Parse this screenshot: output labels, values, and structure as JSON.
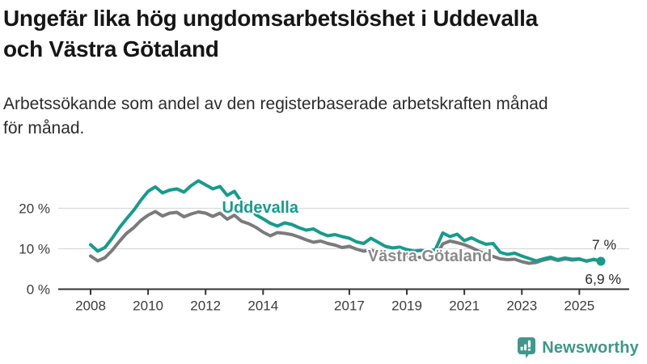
{
  "header": {
    "title_lines": [
      "Ungefär lika hög ungdomsarbetslöshet i Uddevalla",
      "och Västra Götaland"
    ],
    "subtitle_lines": [
      "Arbetssökande som andel av den registerbaserade arbetskraften månad",
      "för månad."
    ]
  },
  "footer": {
    "brand": "Newsworthy",
    "brand_color": "#40968a",
    "logo_icon": "speech-bubble-bar-chart-exclamation-icon"
  },
  "chart_data": {
    "type": "line",
    "title": "Ungefär lika hög ungdomsarbetslöshet i Uddevalla och Västra Götaland",
    "subtitle": "Arbetssökande som andel av den registerbaserade arbetskraften månad för månad.",
    "unit": "%",
    "grid": "horizontal",
    "legend": "inline-labels",
    "xlim": [
      2006.9,
      2026.8
    ],
    "ylim": [
      0,
      29
    ],
    "xticks": [
      "2008",
      "2010",
      "2012",
      "2014",
      "2017",
      "2019",
      "2021",
      "2023",
      "2025"
    ],
    "xtick_years": [
      2008,
      2010,
      2012,
      2014,
      2017,
      2019,
      2021,
      2023,
      2025
    ],
    "yticks": [
      {
        "value": 0,
        "label": "0 %"
      },
      {
        "value": 10,
        "label": "10 %"
      },
      {
        "value": 20,
        "label": "20 %"
      }
    ],
    "x": [
      2008.0,
      2008.25,
      2008.5,
      2008.75,
      2009.0,
      2009.25,
      2009.5,
      2009.75,
      2010.0,
      2010.25,
      2010.5,
      2010.75,
      2011.0,
      2011.25,
      2011.5,
      2011.75,
      2012.0,
      2012.25,
      2012.5,
      2012.75,
      2013.0,
      2013.25,
      2013.5,
      2013.75,
      2014.0,
      2014.25,
      2014.5,
      2014.75,
      2015.0,
      2015.25,
      2015.5,
      2015.75,
      2016.0,
      2016.25,
      2016.5,
      2016.75,
      2017.0,
      2017.25,
      2017.5,
      2017.75,
      2018.0,
      2018.25,
      2018.5,
      2018.75,
      2019.0,
      2019.25,
      2019.5,
      2019.75,
      2020.0,
      2020.25,
      2020.5,
      2020.75,
      2021.0,
      2021.25,
      2021.5,
      2021.75,
      2022.0,
      2022.25,
      2022.5,
      2022.75,
      2023.0,
      2023.25,
      2023.5,
      2023.75,
      2024.0,
      2024.25,
      2024.5,
      2024.75,
      2025.0,
      2025.25,
      2025.5,
      2025.75
    ],
    "series": [
      {
        "id": "uddevalla",
        "name": "Uddevalla",
        "color": "#1a9a8c",
        "values": [
          11.0,
          9.4,
          10.3,
          12.6,
          15.2,
          17.4,
          19.5,
          22.0,
          24.2,
          25.3,
          23.8,
          24.5,
          24.8,
          24.0,
          25.6,
          26.8,
          25.8,
          24.8,
          25.4,
          23.2,
          24.2,
          21.6,
          20.2,
          18.4,
          17.4,
          16.3,
          15.6,
          16.4,
          16.0,
          15.2,
          14.6,
          14.9,
          13.9,
          13.2,
          13.5,
          13.0,
          12.6,
          11.7,
          11.3,
          12.6,
          11.6,
          10.6,
          10.2,
          10.4,
          9.8,
          9.4,
          9.6,
          9.2,
          9.9,
          13.9,
          13.0,
          13.6,
          12.0,
          12.7,
          11.8,
          11.1,
          11.3,
          9.1,
          8.6,
          8.9,
          8.2,
          7.6,
          7.0,
          7.5,
          7.9,
          7.3,
          7.7,
          7.4,
          7.5,
          6.9,
          7.4,
          6.9
        ]
      },
      {
        "id": "vastra-gotaland",
        "name": "Västra Götaland",
        "color": "#7b7b7b",
        "values": [
          8.2,
          7.0,
          7.8,
          9.6,
          11.8,
          13.8,
          15.2,
          17.0,
          18.3,
          19.2,
          18.1,
          18.8,
          19.0,
          17.9,
          18.6,
          19.1,
          18.8,
          18.0,
          18.8,
          17.3,
          18.3,
          16.8,
          16.2,
          15.3,
          14.1,
          13.2,
          14.0,
          13.8,
          13.5,
          12.9,
          12.2,
          11.6,
          11.9,
          11.3,
          10.9,
          10.3,
          10.6,
          9.9,
          9.4,
          9.7,
          8.9,
          8.5,
          8.2,
          8.4,
          7.9,
          7.7,
          7.9,
          7.6,
          8.1,
          11.2,
          11.9,
          11.5,
          11.0,
          10.3,
          9.4,
          8.6,
          8.1,
          7.5,
          7.3,
          7.4,
          6.8,
          6.4,
          6.6,
          7.2,
          7.6,
          7.1,
          7.5,
          7.2,
          7.4,
          7.0,
          7.3,
          7.0
        ]
      }
    ],
    "inline_labels": [
      {
        "text": "Uddevalla",
        "x": 2013.9,
        "y": 20.3,
        "color": "#1a9a8c"
      },
      {
        "text": "Västra Götaland",
        "x": 2019.8,
        "y": 8.3,
        "color": "#8a8a8a"
      }
    ],
    "end_labels": [
      {
        "series": "Västra Götaland",
        "text": "7 %",
        "value": 7.0,
        "position": "above"
      },
      {
        "series": "Uddevalla",
        "text": "6,9 %",
        "value": 6.9,
        "position": "below"
      }
    ],
    "end_dot": {
      "series": "Uddevalla",
      "x": 2025.75,
      "y": 6.9,
      "color": "#1a9a8c"
    }
  }
}
